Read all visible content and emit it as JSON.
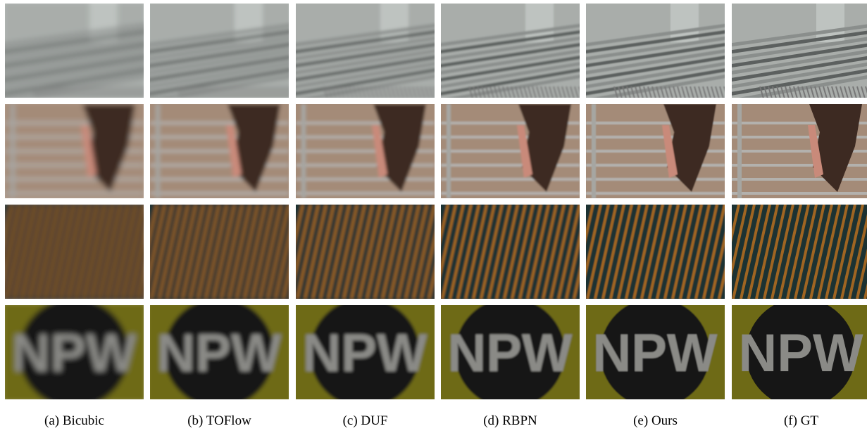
{
  "figure": {
    "captions": [
      "(a) Bicubic",
      "(b) TOFlow",
      "(c) DUF",
      "(d) RBPN",
      "(e) Ours",
      "(f) GT"
    ],
    "inset_text": "NPW"
  }
}
